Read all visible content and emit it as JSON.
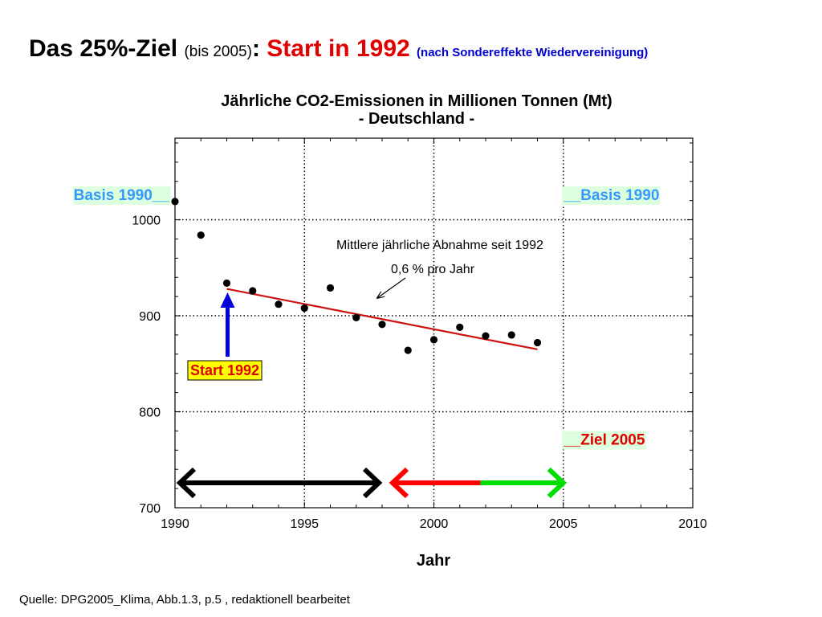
{
  "slide": {
    "title_main": "Das 25%-Ziel",
    "title_paren": "(bis 2005)",
    "title_colon": ":",
    "title_start": "Start in 1992",
    "title_note": "(nach Sondereffekte Wiedervereinigung)",
    "source": "Quelle: DPG2005_Klima, Abb.1.3, p.5 ,  redaktionell bearbeitet"
  },
  "colors": {
    "title_red": "#e00000",
    "note_blue": "#0000d0",
    "basis_text": "#3399ff",
    "label_bg": "#ddffdd",
    "start_box_bg": "#ffff00",
    "start_text": "#e00000",
    "arrow_up": "#0000dd",
    "trend_line": "#cc1111",
    "arrow_black": "#000000",
    "arrow_red": "#ff0000",
    "arrow_green": "#00dd00",
    "ziel_text": "#e00000"
  },
  "chart_data": {
    "type": "scatter",
    "title": "Jährliche CO2-Emissionen in Millionen Tonnen (Mt)",
    "subtitle": "- Deutschland -",
    "xlabel": "Jahr",
    "ylabel": "",
    "xlim": [
      1990,
      2010
    ],
    "ylim": [
      700,
      1085
    ],
    "xticks": [
      1990,
      1995,
      2000,
      2005,
      2010
    ],
    "yticks": [
      700,
      800,
      900,
      1000
    ],
    "grid": true,
    "series": [
      {
        "x": [
          1990,
          1991,
          1992,
          1993,
          1994,
          1995,
          1996,
          1997,
          1998,
          1999,
          2000,
          2001,
          2002,
          2003,
          2004
        ],
        "y": [
          1019,
          984,
          934,
          926,
          912,
          908,
          929,
          898,
          891,
          864,
          875,
          888,
          879,
          880,
          872
        ]
      }
    ],
    "trend": {
      "x": [
        1992,
        2004
      ],
      "y": [
        928,
        865
      ]
    },
    "annotations": [
      {
        "text": "Mittlere jährliche Abnahme seit 1992"
      },
      {
        "text": "0,6 % pro Jahr"
      },
      {
        "text": "Basis 1990",
        "prefix": "",
        "suffix": "__",
        "value": 1019,
        "side": "left"
      },
      {
        "text": "Basis 1990",
        "prefix": "__",
        "suffix": "",
        "value": 1019,
        "side": "right"
      },
      {
        "text": "Ziel 2005",
        "prefix": "__",
        "suffix": "",
        "value": 764,
        "side": "right"
      },
      {
        "text": "Start 1992",
        "year": 1992
      }
    ],
    "timeline_arrows": [
      {
        "from": 1990,
        "to": 1998,
        "color": "black",
        "double_headed": true
      },
      {
        "from": 1998,
        "to": 2001.8,
        "color": "red",
        "head_start": true
      },
      {
        "from": 2001.8,
        "to": 2005,
        "color": "green",
        "head_end": true
      }
    ]
  }
}
